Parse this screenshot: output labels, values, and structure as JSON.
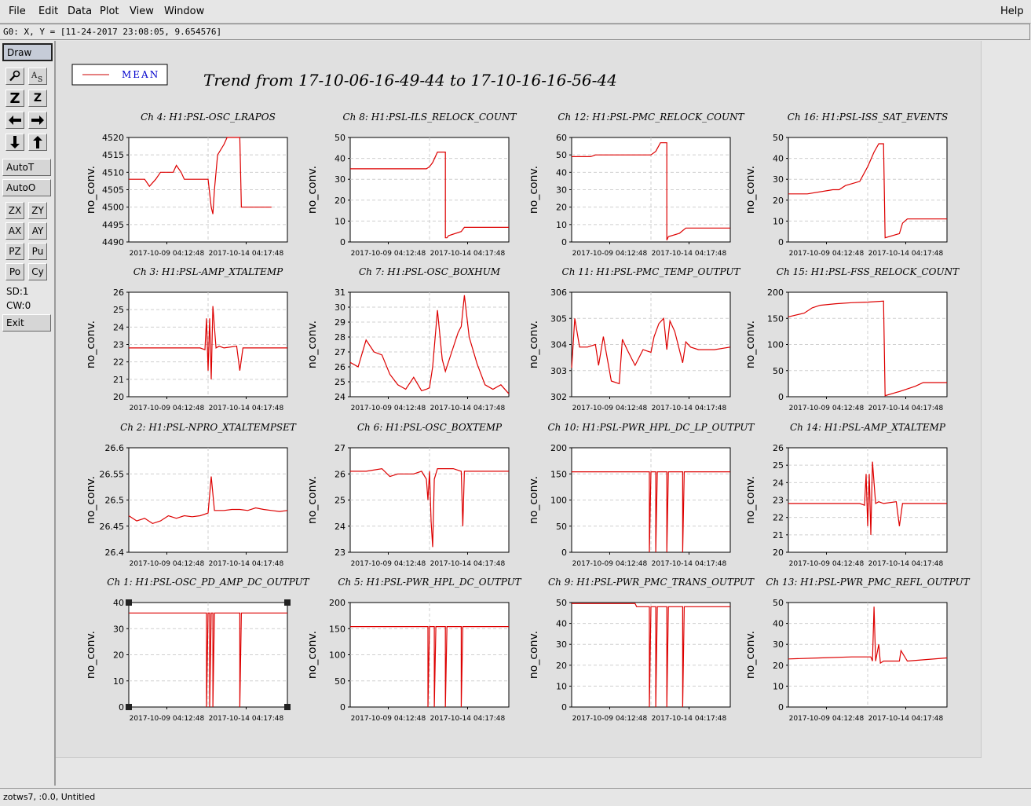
{
  "menu": {
    "file": "File",
    "edit": "Edit",
    "data": "Data",
    "plot": "Plot",
    "view": "View",
    "window": "Window",
    "help": "Help"
  },
  "coord_readout": "G0: X, Y = [11-24-2017 23:08:05, 9.654576]",
  "toolbar": {
    "draw": "Draw",
    "zoom_icon": "magnifier-icon",
    "text_icon": "text-size-icon",
    "zoom_z": "Z",
    "zoom_z_small": "Z",
    "autot": "AutoT",
    "autoo": "AutoO",
    "zx": "ZX",
    "zy": "ZY",
    "ax": "AX",
    "ay": "AY",
    "pz": "PZ",
    "pu": "Pu",
    "po": "Po",
    "cy": "Cy",
    "sd": "SD:1",
    "cw": "CW:0",
    "exit": "Exit"
  },
  "status": "zotws7, :0.0, Untitled",
  "legend": {
    "label": "MEAN",
    "color": "#cc0000"
  },
  "main_title": "Trend from 17-10-06-16-49-44 to 17-10-16-16-56-44",
  "colors": {
    "trace": "#dd0000",
    "grid": "#cfcfcf",
    "panel_bg": "#e0e0e0"
  },
  "x_ticks": [
    "2017-10-09 04:12:48",
    "2017-10-14 04:17:48"
  ],
  "y_label": "no_conv.",
  "chart_data": [
    {
      "type": "line",
      "title": "Ch 4: H1:PSL-OSC_LRAPOS",
      "ylabel": "no_conv.",
      "ylim": [
        4490,
        4520
      ],
      "yticks": [
        4490,
        4495,
        4500,
        4505,
        4510,
        4515,
        4520
      ],
      "x": [
        0,
        0.1,
        0.13,
        0.17,
        0.2,
        0.28,
        0.3,
        0.33,
        0.35,
        0.5,
        0.52,
        0.53,
        0.54,
        0.56,
        0.6,
        0.62,
        0.68,
        0.7,
        0.71,
        0.72,
        0.9
      ],
      "values": [
        4508,
        4508,
        4506,
        4508,
        4510,
        4510,
        4512,
        4510,
        4508,
        4508,
        4500,
        4498,
        4505,
        4515,
        4518,
        4520,
        4520,
        4520,
        4500,
        4500,
        4500
      ]
    },
    {
      "type": "line",
      "title": "Ch 8: H1:PSL-ILS_RELOCK_COUNT",
      "ylabel": "no_conv.",
      "ylim": [
        0,
        50
      ],
      "yticks": [
        0,
        10,
        20,
        30,
        40,
        50
      ],
      "x": [
        0,
        0.48,
        0.5,
        0.52,
        0.55,
        0.6,
        0.6,
        0.61,
        0.62,
        0.7,
        0.72,
        0.8,
        1
      ],
      "values": [
        35,
        35,
        36,
        38,
        43,
        43,
        2,
        2,
        3,
        5,
        7,
        7,
        7
      ]
    },
    {
      "type": "line",
      "title": "Ch 12: H1:PSL-PMC_RELOCK_COUNT",
      "ylabel": "no_conv.",
      "ylim": [
        0,
        60
      ],
      "yticks": [
        0,
        10,
        20,
        30,
        40,
        50,
        60
      ],
      "x": [
        0,
        0.12,
        0.15,
        0.5,
        0.53,
        0.56,
        0.6,
        0.6,
        0.61,
        0.68,
        0.72,
        0.8,
        1
      ],
      "values": [
        49,
        49,
        50,
        50,
        52,
        57,
        57,
        1,
        3,
        5,
        8,
        8,
        8
      ]
    },
    {
      "type": "line",
      "title": "Ch 16: H1:PSL-ISS_SAT_EVENTS",
      "ylabel": "no_conv.",
      "ylim": [
        0,
        50
      ],
      "yticks": [
        0,
        10,
        20,
        30,
        40,
        50
      ],
      "x": [
        0,
        0.12,
        0.28,
        0.32,
        0.36,
        0.45,
        0.5,
        0.54,
        0.57,
        0.6,
        0.61,
        0.7,
        0.72,
        0.75,
        1
      ],
      "values": [
        23,
        23,
        25,
        25,
        27,
        29,
        36,
        43,
        47,
        47,
        2,
        4,
        9,
        11,
        11
      ]
    },
    {
      "type": "line",
      "title": "Ch 3: H1:PSL-AMP_XTALTEMP",
      "ylabel": "no_conv.",
      "ylim": [
        20,
        26
      ],
      "yticks": [
        20,
        21,
        22,
        23,
        24,
        25,
        26
      ],
      "x": [
        0,
        0.45,
        0.48,
        0.49,
        0.5,
        0.51,
        0.52,
        0.53,
        0.55,
        0.57,
        0.6,
        0.68,
        0.7,
        0.72,
        1
      ],
      "values": [
        22.8,
        22.8,
        22.7,
        24.5,
        21.5,
        24.5,
        21,
        25.2,
        22.8,
        22.9,
        22.8,
        22.9,
        21.5,
        22.8,
        22.8
      ]
    },
    {
      "type": "line",
      "title": "Ch 7: H1:PSL-OSC_BOXHUM",
      "ylabel": "no_conv.",
      "ylim": [
        24,
        31
      ],
      "yticks": [
        24,
        25,
        26,
        27,
        28,
        29,
        30,
        31
      ],
      "x": [
        0,
        0.05,
        0.1,
        0.15,
        0.2,
        0.25,
        0.3,
        0.35,
        0.4,
        0.45,
        0.48,
        0.5,
        0.52,
        0.55,
        0.58,
        0.6,
        0.64,
        0.68,
        0.7,
        0.72,
        0.75,
        0.8,
        0.85,
        0.9,
        0.95,
        1
      ],
      "values": [
        26.3,
        26,
        27.8,
        27,
        26.8,
        25.5,
        24.8,
        24.5,
        25.3,
        24.4,
        24.5,
        24.6,
        26,
        29.8,
        26.5,
        25.7,
        27,
        28.3,
        28.7,
        30.8,
        28,
        26.2,
        24.8,
        24.5,
        24.8,
        24.2
      ]
    },
    {
      "type": "line",
      "title": "Ch 11: H1:PSL-PMC_TEMP_OUTPUT",
      "ylabel": "no_conv.",
      "ylim": [
        302,
        306
      ],
      "yticks": [
        302,
        303,
        304,
        305,
        306
      ],
      "x": [
        0,
        0.02,
        0.05,
        0.1,
        0.15,
        0.17,
        0.2,
        0.25,
        0.3,
        0.32,
        0.35,
        0.4,
        0.45,
        0.5,
        0.52,
        0.55,
        0.58,
        0.6,
        0.62,
        0.65,
        0.7,
        0.72,
        0.75,
        0.8,
        0.9,
        1
      ],
      "values": [
        303.1,
        305,
        303.9,
        303.9,
        304,
        303.2,
        304.3,
        302.6,
        302.5,
        304.2,
        303.8,
        303.2,
        303.8,
        303.7,
        304.3,
        304.8,
        305,
        303.8,
        304.9,
        304.5,
        303.3,
        304.1,
        303.9,
        303.8,
        303.8,
        303.9
      ]
    },
    {
      "type": "line",
      "title": "Ch 15: H1:PSL-FSS_RELOCK_COUNT",
      "ylabel": "no_conv.",
      "ylim": [
        0,
        200
      ],
      "yticks": [
        0,
        50,
        100,
        150,
        200
      ],
      "x": [
        0,
        0.1,
        0.15,
        0.2,
        0.3,
        0.4,
        0.5,
        0.6,
        0.61,
        0.7,
        0.8,
        0.85,
        1
      ],
      "values": [
        153,
        160,
        170,
        175,
        178,
        180,
        181,
        183,
        2,
        10,
        20,
        27,
        27
      ]
    },
    {
      "type": "line",
      "title": "Ch 2: H1:PSL-NPRO_XTALTEMPSET",
      "ylabel": "no_conv.",
      "ylim": [
        26.4,
        26.6
      ],
      "yticks": [
        26.4,
        26.45,
        26.5,
        26.55,
        26.6
      ],
      "x": [
        0,
        0.05,
        0.1,
        0.15,
        0.2,
        0.25,
        0.3,
        0.35,
        0.4,
        0.45,
        0.5,
        0.52,
        0.54,
        0.6,
        0.65,
        0.7,
        0.75,
        0.8,
        0.85,
        0.9,
        0.95,
        1
      ],
      "values": [
        26.47,
        26.46,
        26.465,
        26.455,
        26.46,
        26.47,
        26.465,
        26.47,
        26.468,
        26.47,
        26.475,
        26.545,
        26.48,
        26.48,
        26.482,
        26.482,
        26.48,
        26.485,
        26.482,
        26.48,
        26.478,
        26.48
      ]
    },
    {
      "type": "line",
      "title": "Ch 6: H1:PSL-OSC_BOXTEMP",
      "ylabel": "no_conv.",
      "ylim": [
        23,
        27
      ],
      "yticks": [
        23,
        24,
        25,
        26,
        27
      ],
      "x": [
        0,
        0.1,
        0.2,
        0.25,
        0.3,
        0.4,
        0.45,
        0.48,
        0.49,
        0.5,
        0.51,
        0.52,
        0.53,
        0.55,
        0.6,
        0.65,
        0.7,
        0.71,
        0.72,
        0.8,
        0.9,
        1
      ],
      "values": [
        26.1,
        26.1,
        26.2,
        25.9,
        26,
        26,
        26.1,
        25.8,
        25,
        26.1,
        24.2,
        23.2,
        25.8,
        26.2,
        26.2,
        26.2,
        26.1,
        24,
        26.1,
        26.1,
        26.1,
        26.1
      ]
    },
    {
      "type": "line",
      "title": "Ch 10: H1:PSL-PWR_HPL_DC_LP_OUTPUT",
      "ylabel": "no_conv.",
      "ylim": [
        0,
        200
      ],
      "yticks": [
        0,
        50,
        100,
        150,
        200
      ],
      "x": [
        0,
        0.49,
        0.49,
        0.5,
        0.53,
        0.53,
        0.54,
        0.6,
        0.6,
        0.61,
        0.7,
        0.7,
        0.71,
        1
      ],
      "values": [
        154,
        154,
        0,
        154,
        154,
        0,
        154,
        154,
        0,
        154,
        154,
        0,
        154,
        154
      ]
    },
    {
      "type": "line",
      "title": "Ch 14: H1:PSL-AMP_XTALTEMP",
      "ylabel": "no_conv.",
      "ylim": [
        20,
        26
      ],
      "yticks": [
        20,
        21,
        22,
        23,
        24,
        25,
        26
      ],
      "x": [
        0,
        0.45,
        0.48,
        0.49,
        0.5,
        0.51,
        0.52,
        0.53,
        0.55,
        0.57,
        0.6,
        0.68,
        0.7,
        0.72,
        1
      ],
      "values": [
        22.8,
        22.8,
        22.7,
        24.5,
        21.5,
        24.5,
        21,
        25.2,
        22.8,
        22.9,
        22.8,
        22.9,
        21.5,
        22.8,
        22.8
      ]
    },
    {
      "type": "line",
      "title": "Ch 1: H1:PSL-OSC_PD_AMP_DC_OUTPUT",
      "ylabel": "no_conv.",
      "ylim": [
        0,
        40
      ],
      "yticks": [
        0,
        10,
        20,
        30,
        40
      ],
      "x": [
        0,
        0.49,
        0.49,
        0.5,
        0.51,
        0.51,
        0.52,
        0.53,
        0.53,
        0.54,
        0.7,
        0.7,
        0.71,
        1
      ],
      "values": [
        36,
        36,
        0,
        36,
        36,
        0,
        36,
        36,
        0,
        36,
        36,
        0,
        36,
        36
      ]
    },
    {
      "type": "line",
      "title": "Ch 5: H1:PSL-PWR_HPL_DC_OUTPUT",
      "ylabel": "no_conv.",
      "ylim": [
        0,
        200
      ],
      "yticks": [
        0,
        50,
        100,
        150,
        200
      ],
      "x": [
        0,
        0.49,
        0.49,
        0.5,
        0.53,
        0.53,
        0.54,
        0.6,
        0.6,
        0.61,
        0.7,
        0.7,
        0.71,
        1
      ],
      "values": [
        154,
        154,
        0,
        154,
        154,
        0,
        154,
        154,
        0,
        154,
        154,
        0,
        154,
        154
      ]
    },
    {
      "type": "line",
      "title": "Ch 9: H1:PSL-PWR_PMC_TRANS_OUTPUT",
      "ylabel": "no_conv.",
      "ylim": [
        0,
        50
      ],
      "yticks": [
        0,
        10,
        20,
        30,
        40,
        50
      ],
      "x": [
        0,
        0.4,
        0.41,
        0.49,
        0.49,
        0.5,
        0.53,
        0.53,
        0.54,
        0.6,
        0.6,
        0.61,
        0.7,
        0.7,
        0.71,
        1
      ],
      "values": [
        49.5,
        49.5,
        48,
        48,
        0,
        48,
        48,
        0,
        48,
        48,
        0,
        48,
        48,
        0,
        48,
        48
      ]
    },
    {
      "type": "line",
      "title": "Ch 13: H1:PSL-PWR_PMC_REFL_OUTPUT",
      "ylabel": "no_conv.",
      "ylim": [
        0,
        50
      ],
      "yticks": [
        0,
        10,
        20,
        30,
        40,
        50
      ],
      "x": [
        0,
        0.2,
        0.4,
        0.52,
        0.53,
        0.54,
        0.55,
        0.57,
        0.58,
        0.6,
        0.62,
        0.65,
        0.7,
        0.71,
        0.75,
        1
      ],
      "values": [
        23,
        23.5,
        24,
        24,
        22,
        48,
        22,
        30,
        21,
        22,
        22,
        22,
        22,
        27,
        22,
        23.5
      ]
    }
  ]
}
